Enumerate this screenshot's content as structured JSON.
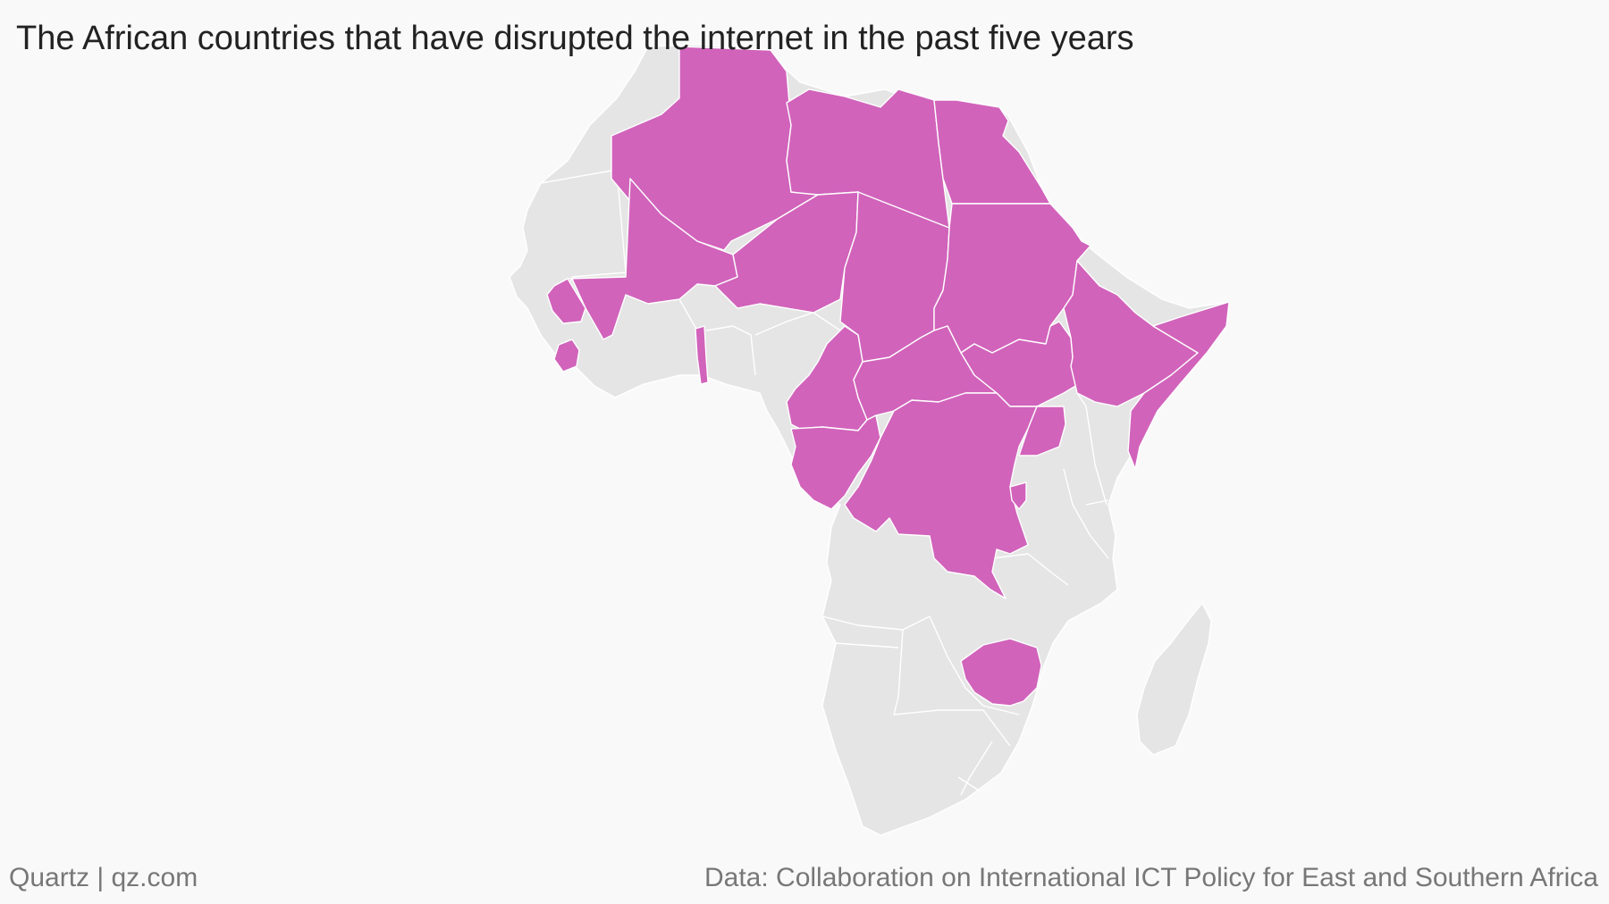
{
  "title": "The African countries that have disrupted the internet in the past five years",
  "footer": {
    "credit": "Quartz | qz.com",
    "source": "Data: Collaboration on International ICT Policy for East and Southern Africa"
  },
  "colors": {
    "disrupted": "#d163bb",
    "not_disrupted": "#e5e5e5",
    "background": "#f9f9f9",
    "border": "#ffffff"
  },
  "chart_data": {
    "type": "choropleth",
    "region": "Africa",
    "categories": [
      "disrupted",
      "not_disrupted"
    ],
    "disrupted": [
      "Algeria",
      "Libya",
      "Egypt",
      "Mali",
      "Niger",
      "Chad",
      "Sudan",
      "South Sudan",
      "Ethiopia",
      "Somalia",
      "Cameroon",
      "Central African Republic",
      "Gabon",
      "Republic of the Congo",
      "Democratic Republic of the Congo",
      "Uganda",
      "Burundi",
      "Sierra Leone",
      "Togo",
      "Senegal",
      "Gambia",
      "Equatorial Guinea",
      "Zimbabwe"
    ],
    "not_disrupted": [
      "Morocco",
      "Western Sahara",
      "Mauritania",
      "Tunisia",
      "Guinea",
      "Guinea-Bissau",
      "Liberia",
      "Ivory Coast",
      "Burkina Faso",
      "Ghana",
      "Benin",
      "Nigeria",
      "Eritrea",
      "Djibouti",
      "Kenya",
      "Rwanda",
      "Tanzania",
      "Angola",
      "Zambia",
      "Malawi",
      "Mozambique",
      "Namibia",
      "Botswana",
      "South Africa",
      "Lesotho",
      "Eswatini",
      "Madagascar"
    ]
  }
}
